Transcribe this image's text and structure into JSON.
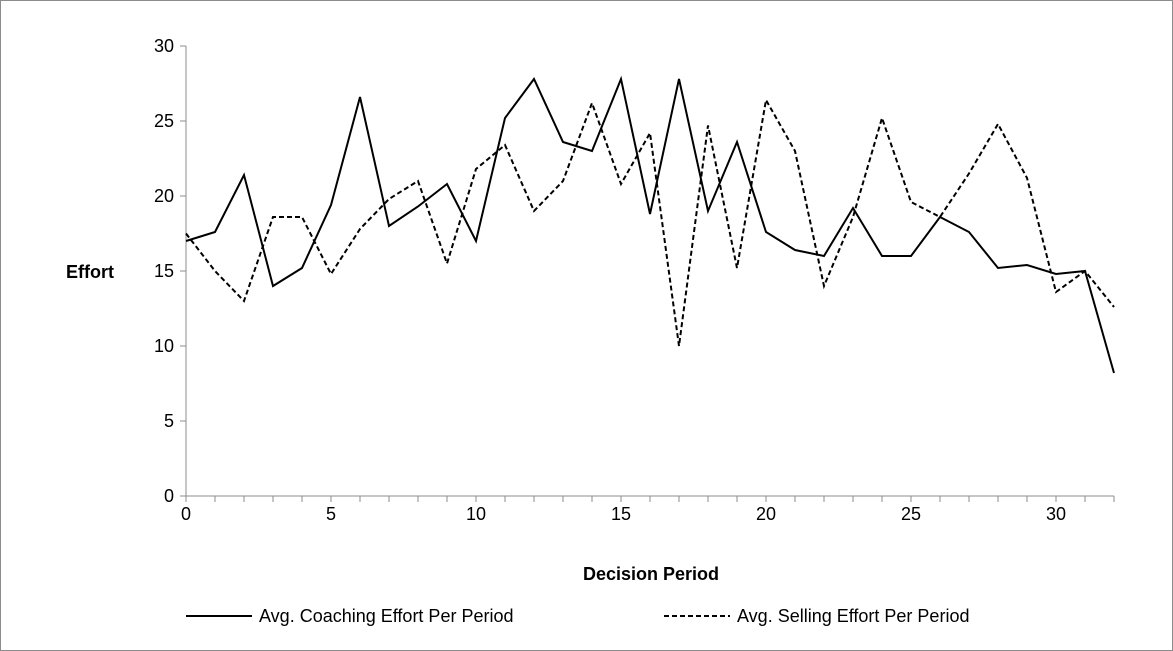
{
  "chart_data": {
    "type": "line",
    "xlabel": "Decision Period",
    "ylabel": "Effort",
    "xlim": [
      0,
      32
    ],
    "ylim": [
      0,
      30
    ],
    "xticks": [
      0,
      5,
      10,
      15,
      20,
      25,
      30
    ],
    "yticks": [
      0,
      5,
      10,
      15,
      20,
      25,
      30
    ],
    "grid": false,
    "legend_position": "bottom",
    "series": [
      {
        "name": "Avg. Coaching Effort Per Period",
        "style": "solid",
        "color": "#000000",
        "x": [
          0,
          1,
          2,
          3,
          4,
          5,
          6,
          7,
          8,
          9,
          10,
          11,
          12,
          13,
          14,
          15,
          16,
          17,
          18,
          19,
          20,
          21,
          22,
          23,
          24,
          25,
          26,
          27,
          28,
          29,
          30,
          31,
          32
        ],
        "values": [
          17.0,
          17.6,
          21.4,
          14.0,
          15.2,
          19.4,
          26.6,
          18.0,
          19.3,
          20.8,
          17.0,
          25.2,
          27.8,
          23.6,
          23.0,
          27.8,
          18.8,
          27.8,
          19.0,
          23.6,
          17.6,
          16.4,
          16.0,
          19.2,
          16.0,
          16.0,
          18.6,
          17.6,
          15.2,
          15.4,
          14.8,
          15.0,
          8.2
        ]
      },
      {
        "name": "Avg. Selling Effort Per Period",
        "style": "dashed",
        "color": "#000000",
        "x": [
          0,
          1,
          2,
          3,
          4,
          5,
          6,
          7,
          8,
          9,
          10,
          11,
          12,
          13,
          14,
          15,
          16,
          17,
          18,
          19,
          20,
          21,
          22,
          23,
          24,
          25,
          26,
          27,
          28,
          29,
          30,
          31,
          32
        ],
        "values": [
          17.5,
          15.0,
          13.0,
          18.6,
          18.6,
          14.8,
          17.8,
          19.8,
          21.0,
          15.5,
          21.8,
          23.4,
          19.0,
          21.0,
          26.2,
          20.8,
          24.2,
          10.0,
          24.7,
          15.2,
          26.4,
          23.0,
          14.0,
          18.6,
          25.2,
          19.6,
          18.6,
          21.5,
          24.8,
          21.2,
          13.6,
          15.0,
          12.6
        ]
      }
    ]
  }
}
